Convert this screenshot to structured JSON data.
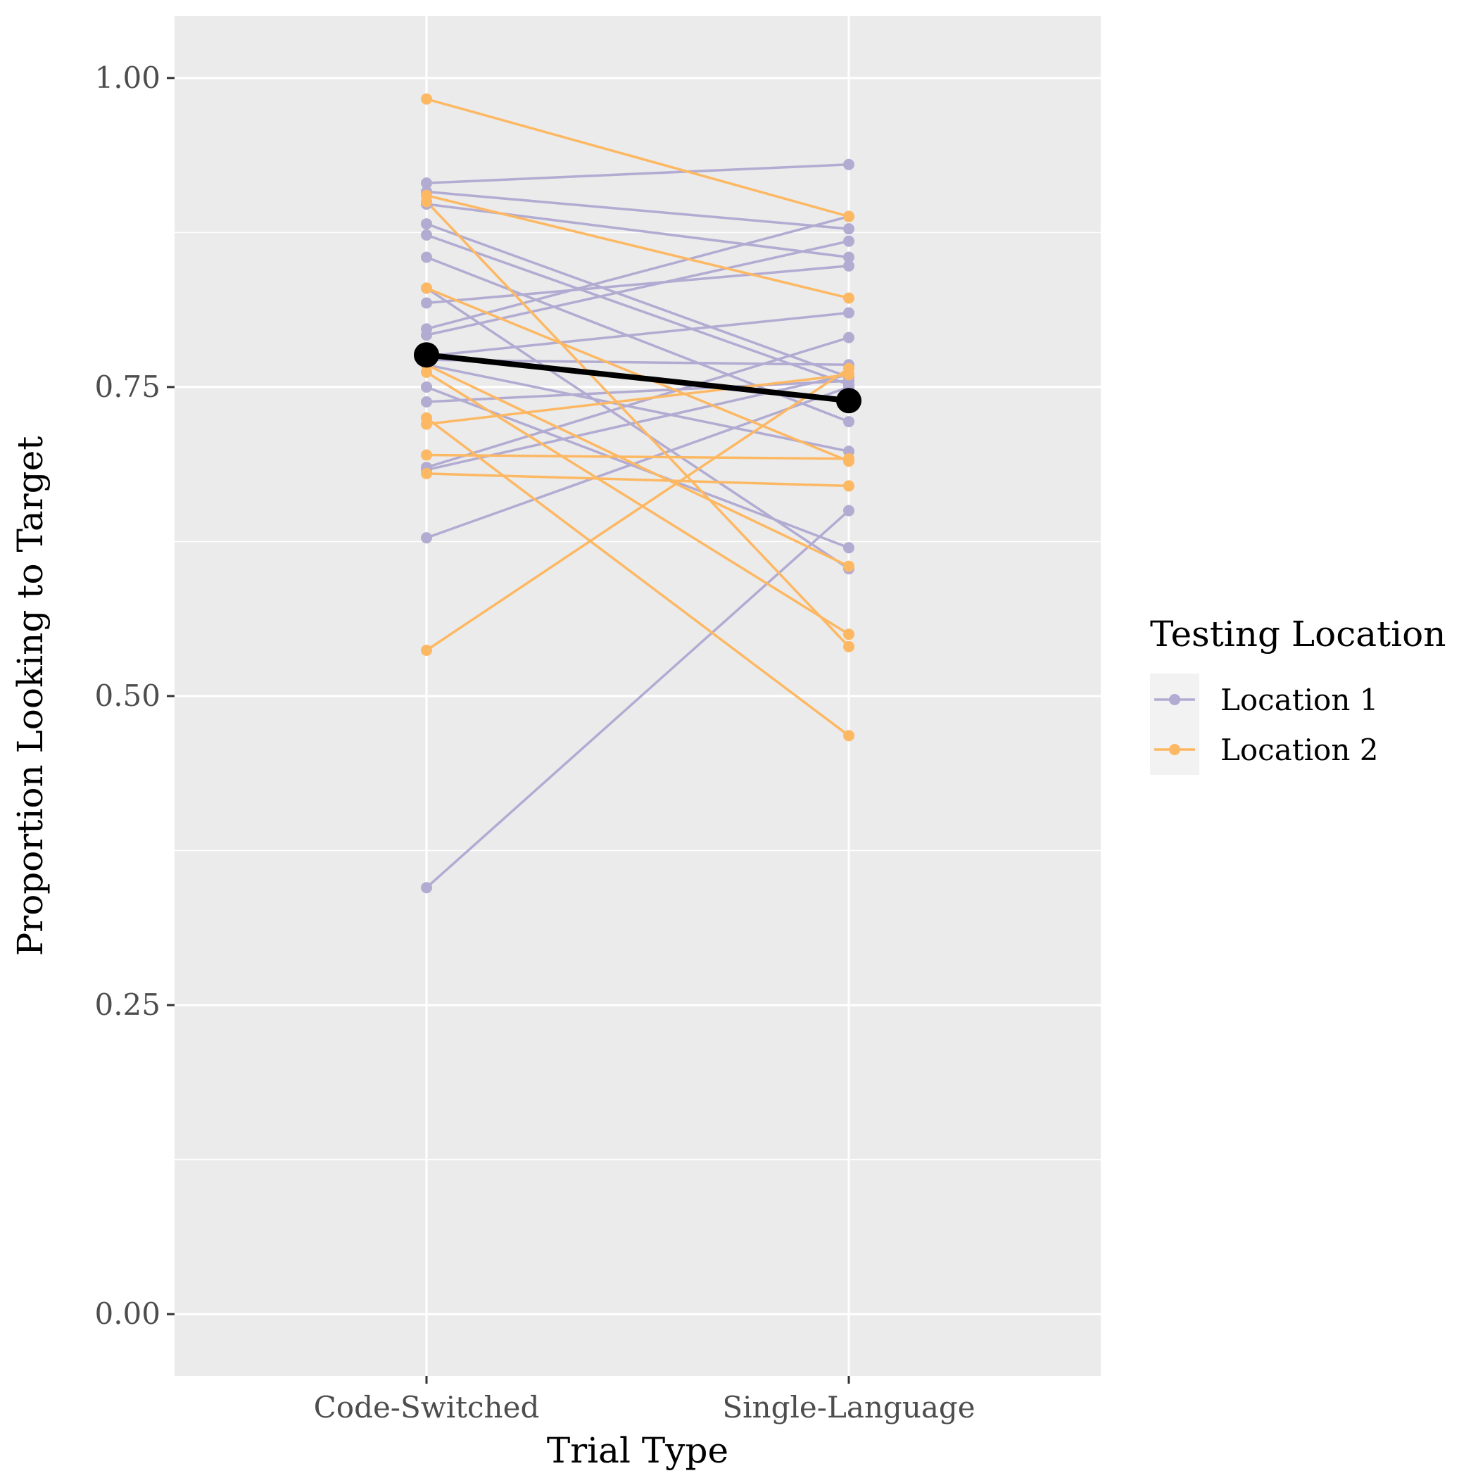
{
  "chart_data": {
    "type": "line",
    "xlabel": "Trial Type",
    "ylabel": "Proportion Looking to Target",
    "categories": [
      "Code-Switched",
      "Single-Language"
    ],
    "ylim": [
      -0.05,
      1.05
    ],
    "yticks": [
      "0.00",
      "0.25",
      "0.50",
      "0.75",
      "1.00"
    ],
    "grid": true,
    "legend": {
      "title": "Testing Location",
      "position": "right",
      "entries": [
        "Location 1",
        "Location 2"
      ]
    },
    "colors": {
      "Location 1": "#b2abd2",
      "Location 2": "#fdb863",
      "mean": "#000000",
      "panel": "#ebebeb",
      "grid": "#ffffff"
    },
    "series": [
      {
        "group": "Location 1",
        "values": [
          0.915,
          0.93
        ]
      },
      {
        "group": "Location 1",
        "values": [
          0.908,
          0.878
        ]
      },
      {
        "group": "Location 1",
        "values": [
          0.898,
          0.855
        ]
      },
      {
        "group": "Location 1",
        "values": [
          0.882,
          0.758
        ]
      },
      {
        "group": "Location 1",
        "values": [
          0.873,
          0.752
        ]
      },
      {
        "group": "Location 1",
        "values": [
          0.855,
          0.722
        ]
      },
      {
        "group": "Location 1",
        "values": [
          0.83,
          0.603
        ]
      },
      {
        "group": "Location 1",
        "values": [
          0.818,
          0.848
        ]
      },
      {
        "group": "Location 1",
        "values": [
          0.797,
          0.888
        ]
      },
      {
        "group": "Location 1",
        "values": [
          0.792,
          0.868
        ]
      },
      {
        "group": "Location 1",
        "values": [
          0.775,
          0.81
        ]
      },
      {
        "group": "Location 1",
        "values": [
          0.772,
          0.768
        ]
      },
      {
        "group": "Location 1",
        "values": [
          0.768,
          0.698
        ]
      },
      {
        "group": "Location 1",
        "values": [
          0.75,
          0.62
        ]
      },
      {
        "group": "Location 1",
        "values": [
          0.738,
          0.755
        ]
      },
      {
        "group": "Location 1",
        "values": [
          0.685,
          0.79
        ]
      },
      {
        "group": "Location 1",
        "values": [
          0.683,
          0.76
        ]
      },
      {
        "group": "Location 1",
        "values": [
          0.628,
          0.75
        ]
      },
      {
        "group": "Location 1",
        "values": [
          0.345,
          0.65
        ]
      },
      {
        "group": "Location 2",
        "values": [
          0.983,
          0.888
        ]
      },
      {
        "group": "Location 2",
        "values": [
          0.905,
          0.822
        ]
      },
      {
        "group": "Location 2",
        "values": [
          0.9,
          0.54
        ]
      },
      {
        "group": "Location 2",
        "values": [
          0.83,
          0.69
        ]
      },
      {
        "group": "Location 2",
        "values": [
          0.768,
          0.605
        ]
      },
      {
        "group": "Location 2",
        "values": [
          0.762,
          0.55
        ]
      },
      {
        "group": "Location 2",
        "values": [
          0.725,
          0.468
        ]
      },
      {
        "group": "Location 2",
        "values": [
          0.72,
          0.76
        ]
      },
      {
        "group": "Location 2",
        "values": [
          0.695,
          0.692
        ]
      },
      {
        "group": "Location 2",
        "values": [
          0.68,
          0.67
        ]
      },
      {
        "group": "Location 2",
        "values": [
          0.537,
          0.765
        ]
      }
    ],
    "mean": {
      "values": [
        0.776,
        0.739
      ]
    }
  }
}
